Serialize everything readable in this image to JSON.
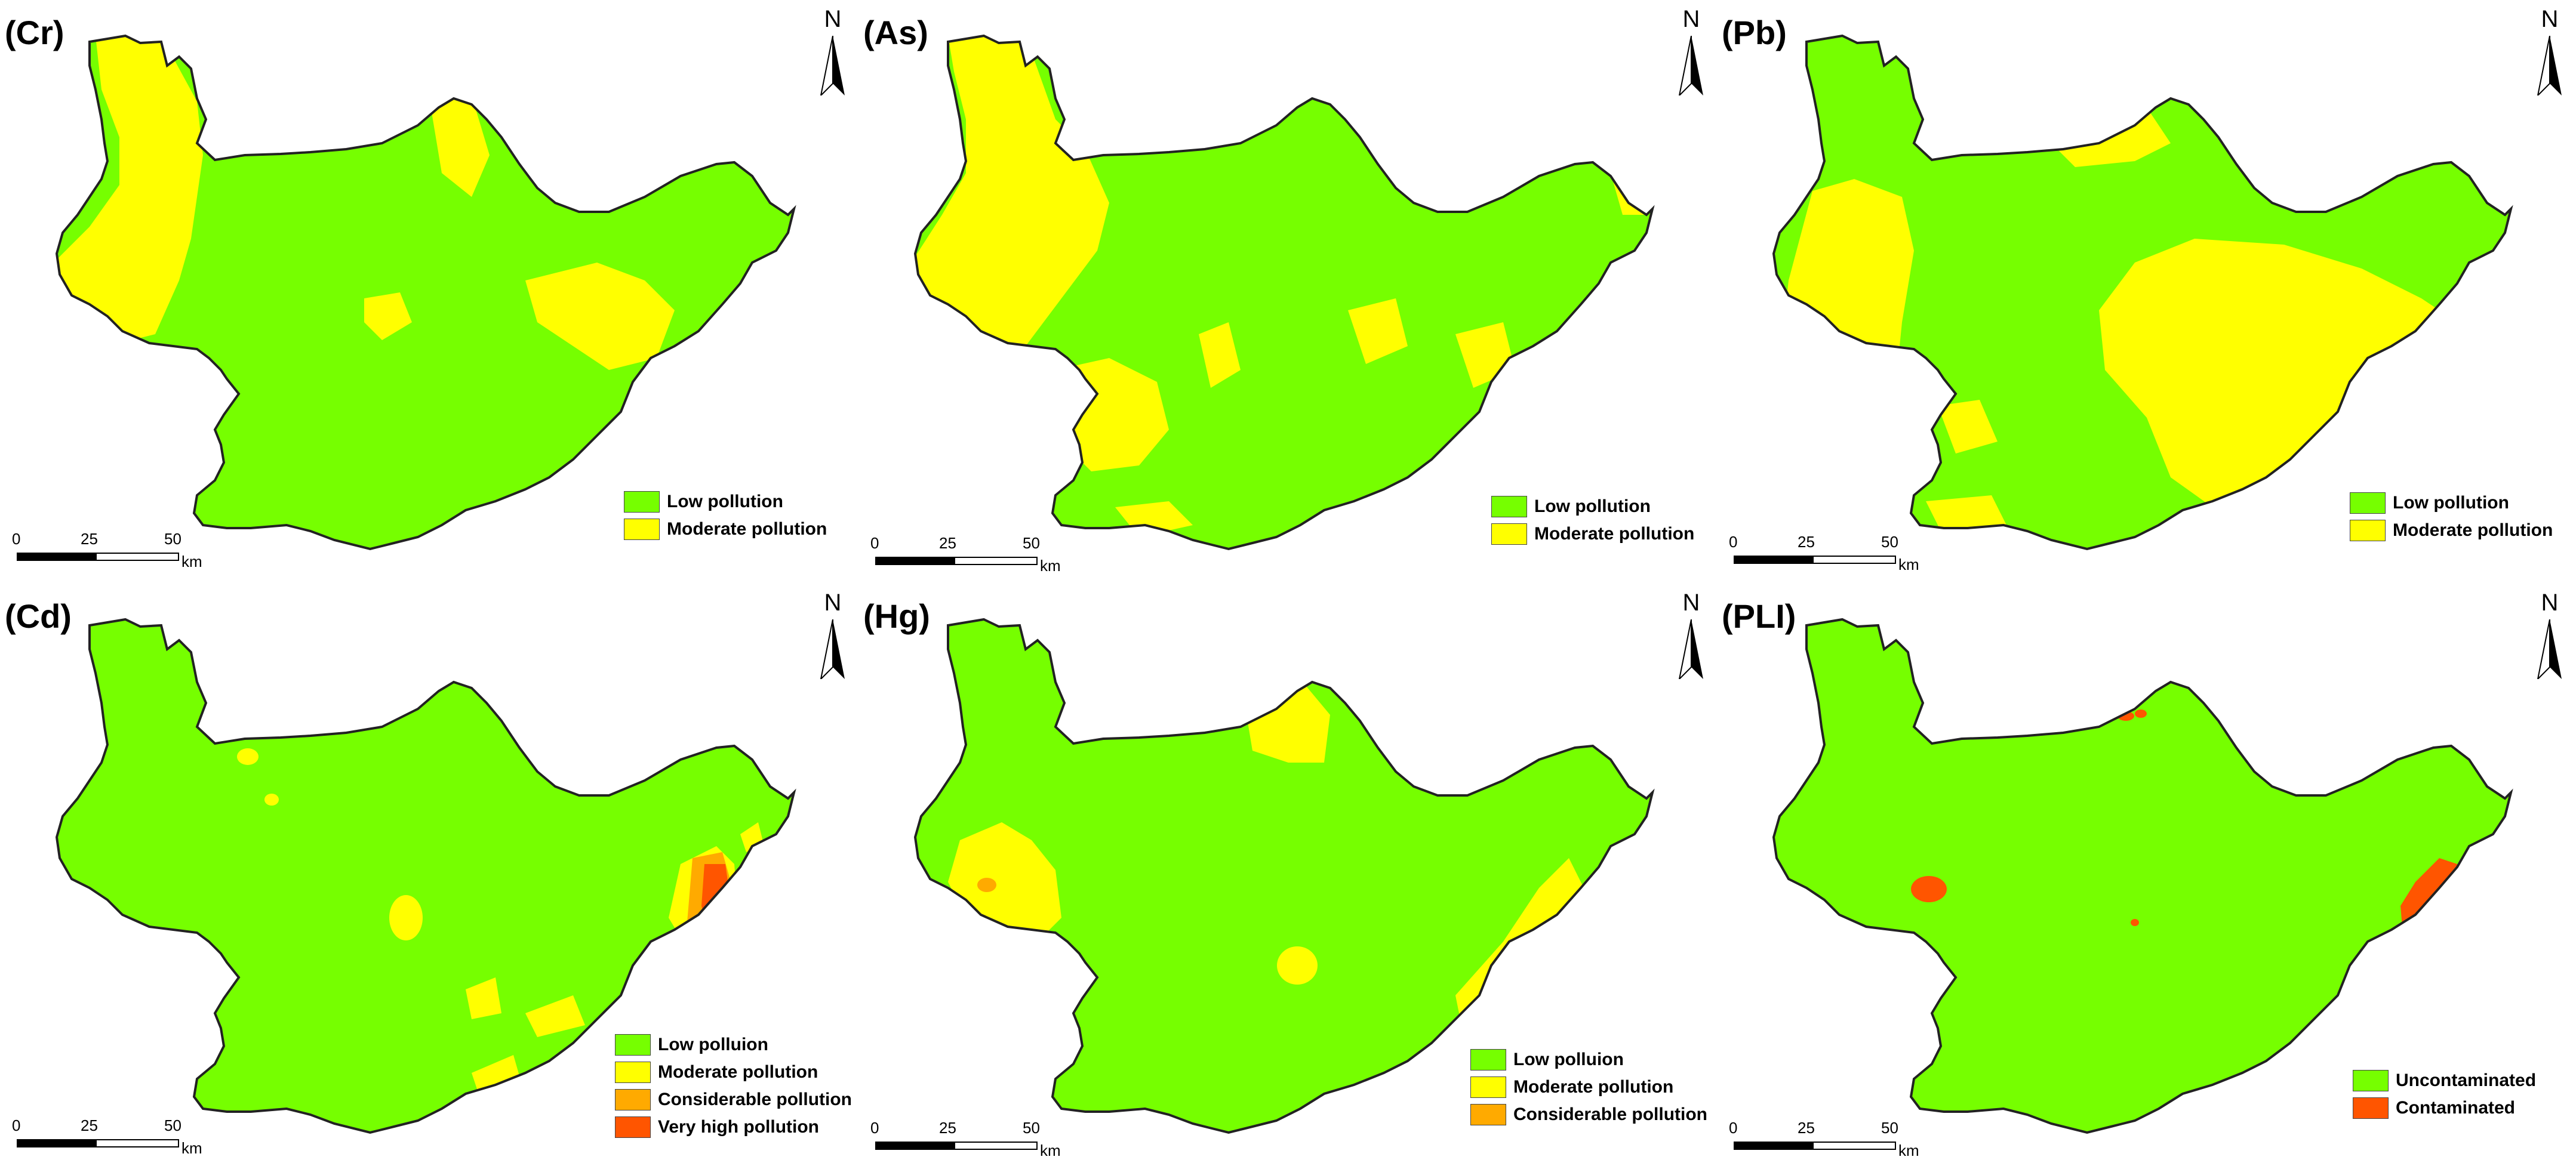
{
  "colors": {
    "low": "#76FF00",
    "moderate": "#FFFF00",
    "considerable": "#FFAA00",
    "very_high": "#FF5500",
    "border": "#222222"
  },
  "scale": {
    "ticks": [
      "0",
      "25",
      "50"
    ],
    "unit": "km"
  },
  "north_letter": "N",
  "panels": [
    {
      "label": "(Cr)",
      "legend": [
        {
          "text": "Low pollution",
          "color_key": "low"
        },
        {
          "text": "Moderate pollution",
          "color_key": "moderate"
        }
      ]
    },
    {
      "label": "(As)",
      "legend": [
        {
          "text": "Low pollution",
          "color_key": "low"
        },
        {
          "text": "Moderate pollution",
          "color_key": "moderate"
        }
      ]
    },
    {
      "label": "(Pb)",
      "legend": [
        {
          "text": "Low pollution",
          "color_key": "low"
        },
        {
          "text": "Moderate pollution",
          "color_key": "moderate"
        }
      ]
    },
    {
      "label": "(Cd)",
      "legend": [
        {
          "text": "Low polluion",
          "color_key": "low"
        },
        {
          "text": "Moderate pollution",
          "color_key": "moderate"
        },
        {
          "text": "Considerable pollution",
          "color_key": "considerable"
        },
        {
          "text": "Very high pollution",
          "color_key": "very_high"
        }
      ]
    },
    {
      "label": "(Hg)",
      "legend": [
        {
          "text": "Low polluion",
          "color_key": "low"
        },
        {
          "text": "Moderate pollution",
          "color_key": "moderate"
        },
        {
          "text": "Considerable pollution",
          "color_key": "considerable"
        }
      ]
    },
    {
      "label": "(PLI)",
      "legend": [
        {
          "text": "Uncontaminated",
          "color_key": "low"
        },
        {
          "text": "Contaminated",
          "color_key": "very_high"
        }
      ]
    }
  ]
}
